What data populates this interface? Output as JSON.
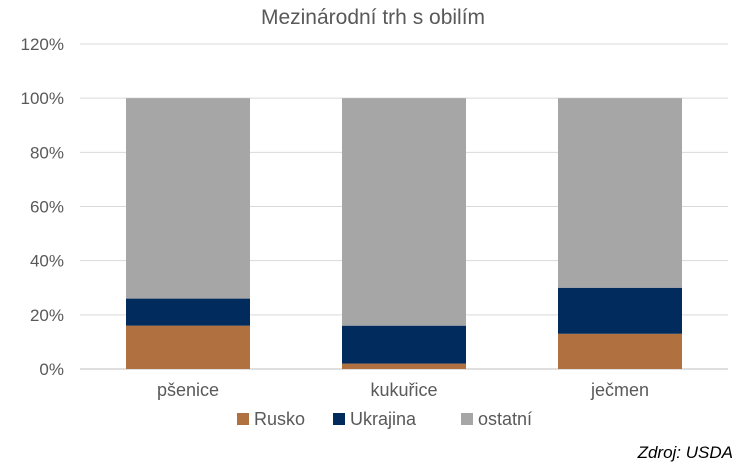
{
  "chart_data": {
    "type": "bar",
    "stacked": true,
    "title": "Mezinárodní trh s obilím",
    "categories": [
      "pšenice",
      "kukuřice",
      "ječmen"
    ],
    "series": [
      {
        "name": "Rusko",
        "values": [
          16,
          2,
          13
        ],
        "color": "#B07040"
      },
      {
        "name": "Ukrajina",
        "values": [
          10,
          14,
          17
        ],
        "color": "#002B5C"
      },
      {
        "name": "ostatní",
        "values": [
          74,
          84,
          70
        ],
        "color": "#A6A6A6"
      }
    ],
    "ylim": [
      0,
      120
    ],
    "yticks": [
      "0%",
      "20%",
      "40%",
      "60%",
      "80%",
      "100%",
      "120%"
    ],
    "grid": true,
    "legend_position": "bottom"
  },
  "source": "Zdroj: USDA"
}
